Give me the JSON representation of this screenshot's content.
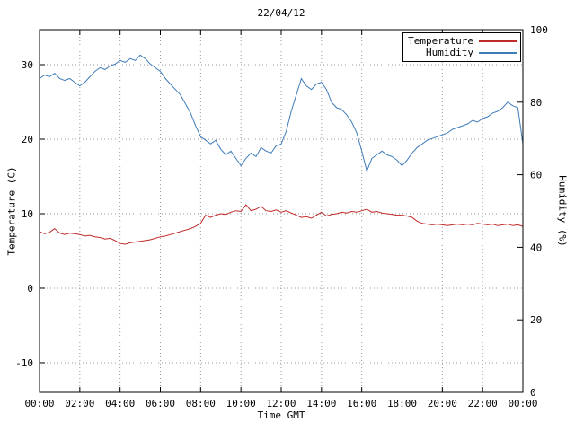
{
  "window": {
    "background": "#ffffff"
  },
  "chart_data": {
    "type": "line",
    "title": "22/04/12",
    "xlabel": "Time GMT",
    "ylabel_left": "Temperature (C)",
    "ylabel_right": "Humidity (%)",
    "grid": true,
    "grid_color": "#9a9a9a",
    "border_color": "#000000",
    "x_range": [
      0,
      24
    ],
    "x_start": 0,
    "x_step": 0.25,
    "x_tick_positions": [
      0,
      2,
      4,
      6,
      8,
      10,
      12,
      14,
      16,
      18,
      20,
      22,
      24
    ],
    "x_tick_labels": [
      "00:00",
      "02:00",
      "04:00",
      "06:00",
      "08:00",
      "10:00",
      "12:00",
      "14:00",
      "16:00",
      "18:00",
      "20:00",
      "22:00",
      "00:00"
    ],
    "y_left_range": [
      -13.98,
      34.7
    ],
    "y_left_ticks": [
      30,
      20,
      10,
      0,
      -10
    ],
    "y_right_range": [
      0,
      100
    ],
    "y_right_ticks": [
      100,
      80,
      60,
      40,
      20,
      0
    ],
    "legend_position": "top-right",
    "series": [
      {
        "name": "Temperature",
        "axis": "left",
        "unit": "C",
        "color": "#c02a2a",
        "values": [
          7.6,
          7.3,
          7.5,
          8.0,
          7.4,
          7.2,
          7.4,
          7.3,
          7.2,
          7.0,
          7.1,
          6.9,
          6.8,
          6.6,
          6.7,
          6.4,
          6.0,
          5.9,
          6.1,
          6.2,
          6.3,
          6.4,
          6.5,
          6.7,
          6.9,
          7.0,
          7.2,
          7.4,
          7.6,
          7.8,
          8.0,
          8.3,
          8.7,
          9.8,
          9.5,
          9.8,
          10.0,
          9.9,
          10.2,
          10.4,
          10.3,
          11.2,
          10.4,
          10.6,
          11.0,
          10.4,
          10.3,
          10.5,
          10.2,
          10.4,
          10.1,
          9.8,
          9.5,
          9.6,
          9.4,
          9.8,
          10.2,
          9.7,
          9.9,
          10.0,
          10.2,
          10.1,
          10.3,
          10.2,
          10.4,
          10.6,
          10.2,
          10.3,
          10.1,
          10.0,
          9.9,
          9.8,
          9.8,
          9.7,
          9.5,
          9.0,
          8.7,
          8.6,
          8.5,
          8.6,
          8.5,
          8.4,
          8.5,
          8.6,
          8.5,
          8.6,
          8.5,
          8.7,
          8.6,
          8.5,
          8.6,
          8.4,
          8.5,
          8.6,
          8.4,
          8.5,
          8.3
        ]
      },
      {
        "name": "Humidity",
        "axis": "right",
        "unit": "%",
        "color": "#3f7cba",
        "values": [
          86.5,
          87.5,
          87,
          88,
          86.5,
          86,
          86.5,
          85.5,
          84.5,
          85.5,
          87,
          88.5,
          89.5,
          89,
          90,
          90.5,
          91.5,
          91,
          92,
          91.5,
          93,
          92,
          90.5,
          89.5,
          88.5,
          86.5,
          85,
          83.5,
          82,
          79.5,
          77,
          73.5,
          70.5,
          69.5,
          68.5,
          69.5,
          67,
          65.5,
          66.5,
          64.5,
          62.5,
          64.5,
          66,
          65,
          67.5,
          66.5,
          66,
          68,
          68.5,
          72,
          77.5,
          82,
          86.5,
          84.5,
          83.5,
          85,
          85.5,
          83.5,
          80,
          78.5,
          78,
          76.5,
          74.5,
          71.5,
          66.5,
          61,
          64.5,
          65.5,
          66.5,
          65.5,
          65,
          64,
          62.5,
          64,
          66,
          67.5,
          68.5,
          69.5,
          70,
          70.5,
          71,
          71.5,
          72.5,
          73,
          73.5,
          74,
          75,
          74.5,
          75.5,
          76,
          77,
          77.5,
          78.5,
          80,
          79,
          78.5,
          68.5
        ]
      }
    ]
  }
}
